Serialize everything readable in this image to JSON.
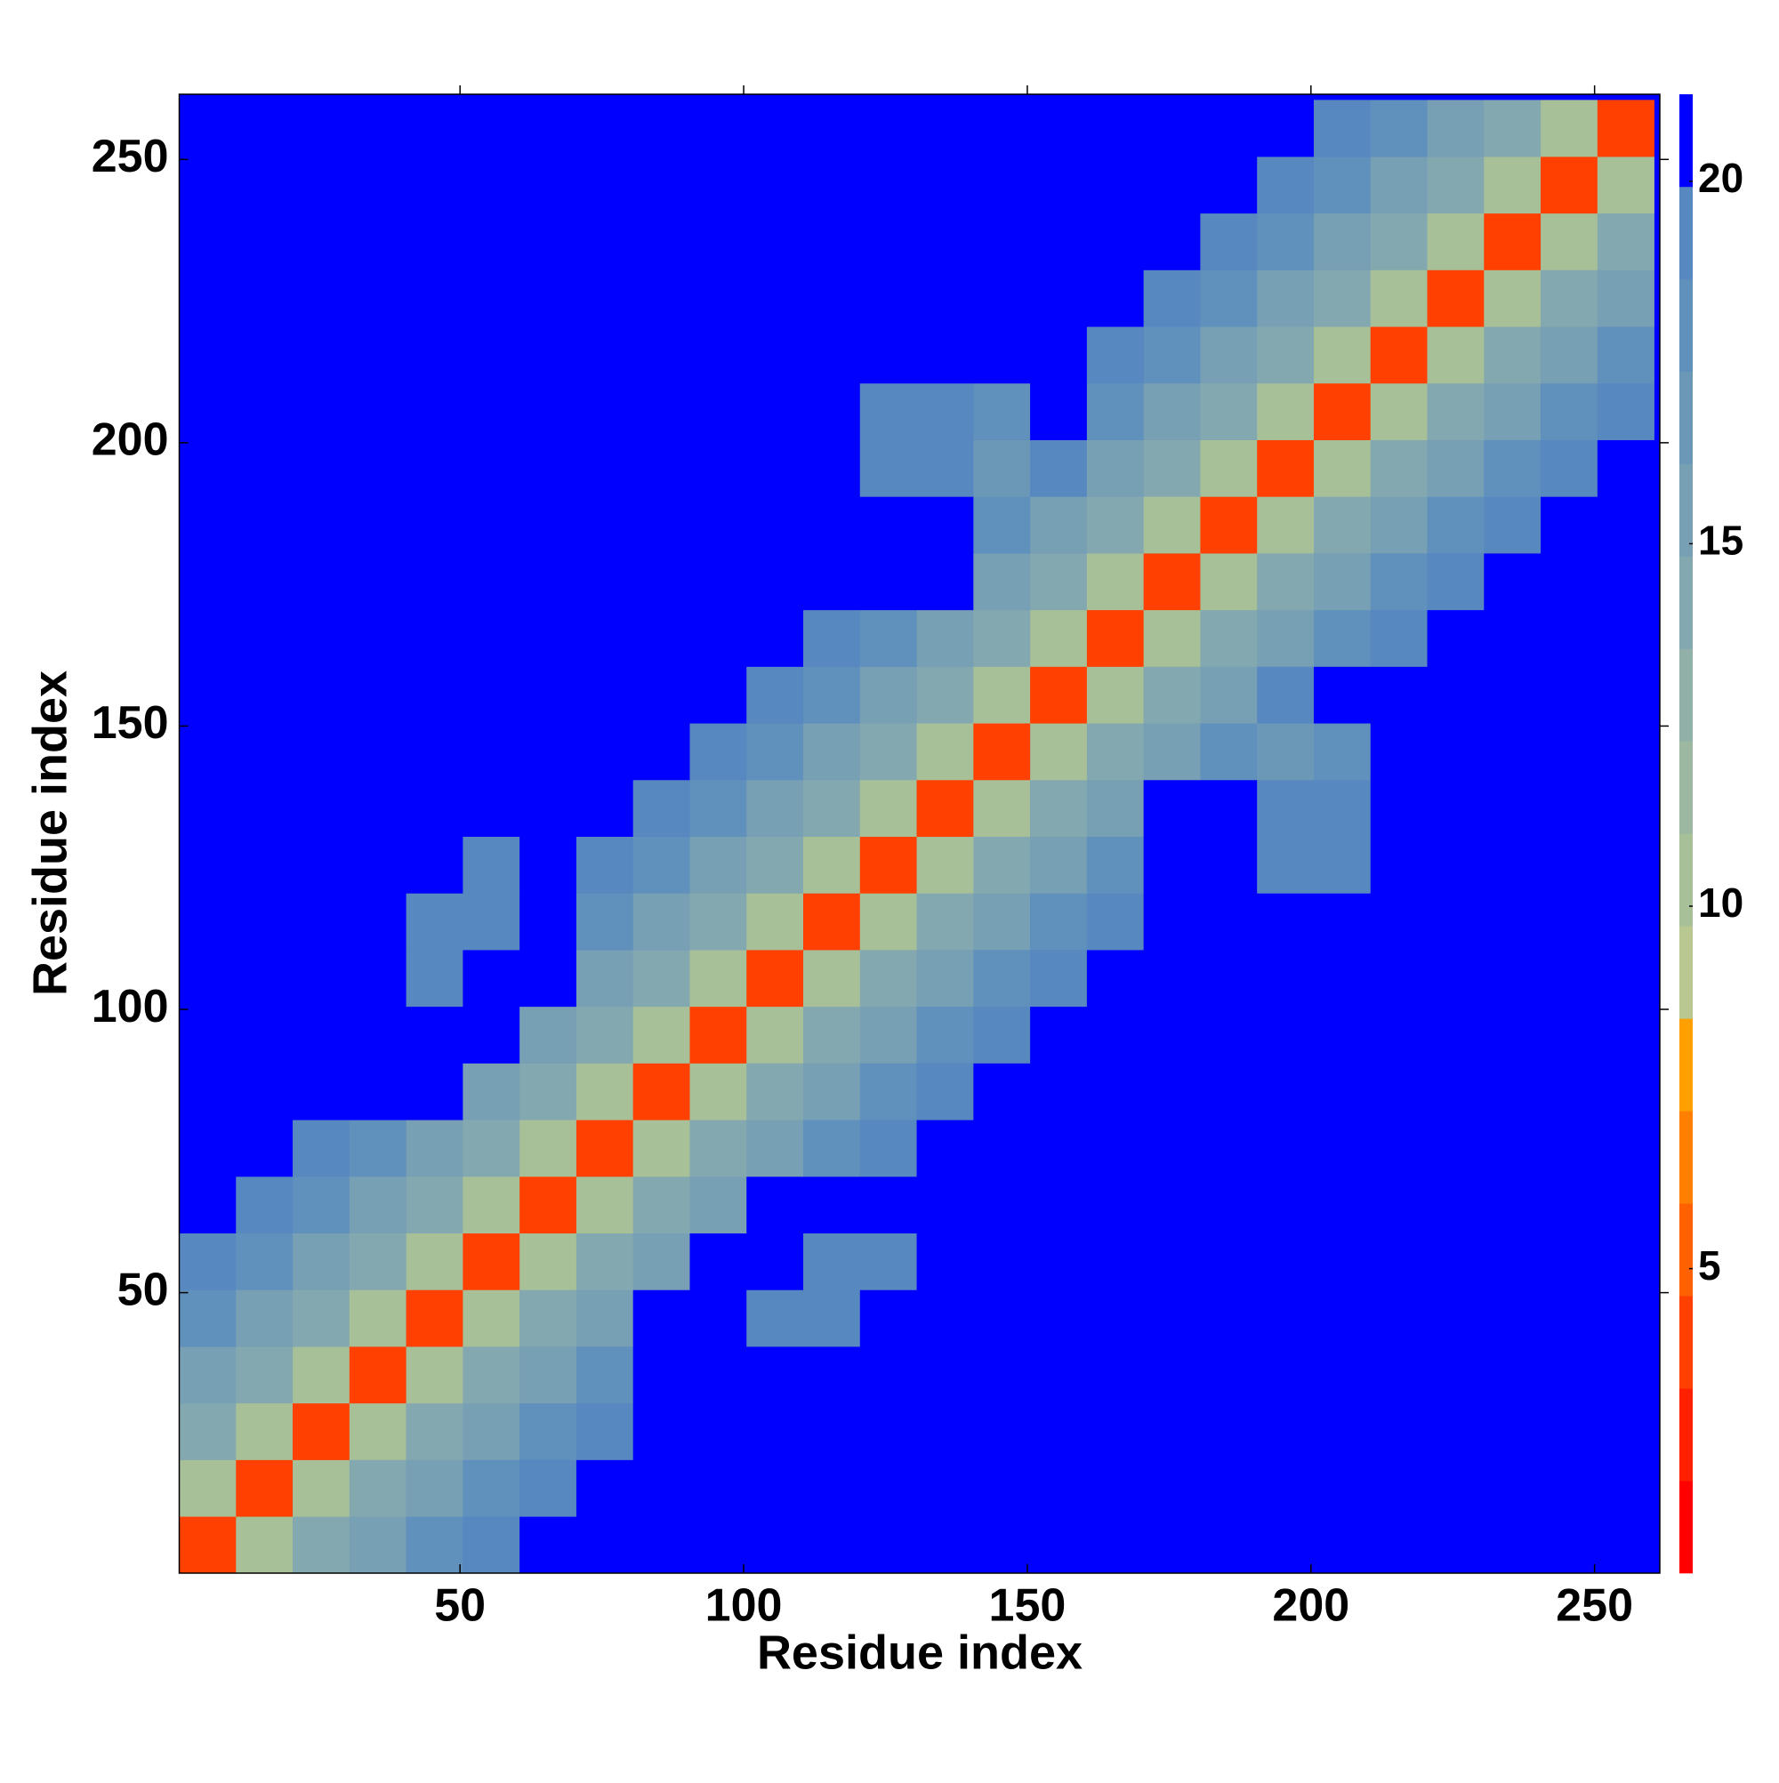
{
  "chart_data": {
    "type": "heatmap",
    "x_label": "Residue index",
    "y_label": "Residue index",
    "x": [
      5.5,
      15.5,
      25.5,
      35.5,
      45.5,
      55.5,
      65.5,
      75.5,
      85.5,
      95.5,
      105.5,
      115.5,
      125.5,
      135.5,
      145.5,
      155.5,
      165.5,
      175.5,
      185.5,
      195.5,
      205.5,
      215.5,
      225.5,
      235.5,
      245.5,
      255.5
    ],
    "y": [
      5.5,
      15.5,
      25.5,
      35.5,
      45.5,
      55.5,
      65.5,
      75.5,
      85.5,
      95.5,
      105.5,
      115.5,
      125.5,
      135.5,
      145.5,
      155.5,
      165.5,
      175.5,
      185.5,
      195.5,
      205.5,
      215.5,
      225.5,
      235.5,
      245.5,
      255.5
    ],
    "z": [
      [
        4,
        10,
        14,
        16,
        18,
        19,
        20,
        21,
        21,
        21,
        21,
        21,
        21,
        21,
        21,
        21,
        21,
        21,
        21,
        21,
        21,
        21,
        21,
        21,
        21,
        21
      ],
      [
        10,
        4,
        10,
        14,
        16,
        18,
        19,
        20,
        21,
        21,
        21,
        21,
        21,
        21,
        21,
        21,
        21,
        21,
        21,
        21,
        21,
        21,
        21,
        21,
        21,
        21
      ],
      [
        14,
        10,
        4,
        10,
        14,
        16,
        18,
        19,
        21,
        20,
        21,
        21,
        21,
        21,
        21,
        21,
        21,
        21,
        21,
        21,
        21,
        21,
        21,
        21,
        21,
        21
      ],
      [
        16,
        14,
        10,
        4,
        10,
        14,
        16,
        18,
        21,
        20,
        21,
        21,
        21,
        21,
        21,
        21,
        21,
        21,
        21,
        21,
        21,
        21,
        21,
        21,
        21,
        21
      ],
      [
        18,
        16,
        14,
        10,
        4,
        10,
        14,
        16,
        21,
        21,
        19,
        19,
        21,
        21,
        21,
        21,
        21,
        21,
        21,
        21,
        21,
        21,
        21,
        21,
        21,
        21
      ],
      [
        19,
        18,
        16,
        14,
        10,
        4,
        10,
        14,
        16,
        21,
        21,
        19,
        19,
        21,
        21,
        21,
        21,
        21,
        21,
        21,
        21,
        21,
        21,
        21,
        21,
        21
      ],
      [
        20,
        19,
        18,
        16,
        14,
        10,
        4,
        10,
        14,
        16,
        21,
        21,
        21,
        21,
        21,
        21,
        21,
        21,
        21,
        21,
        21,
        21,
        21,
        21,
        21,
        21
      ],
      [
        21,
        20,
        19,
        18,
        16,
        14,
        10,
        4,
        10,
        14,
        16,
        18,
        19,
        20,
        21,
        21,
        21,
        21,
        21,
        21,
        21,
        21,
        21,
        21,
        21,
        21
      ],
      [
        21,
        21,
        21,
        21,
        21,
        16,
        14,
        10,
        4,
        10,
        14,
        16,
        18,
        19,
        20,
        21,
        21,
        21,
        21,
        21,
        21,
        21,
        21,
        21,
        21,
        21
      ],
      [
        21,
        21,
        20,
        20,
        21,
        21,
        16,
        14,
        10,
        4,
        10,
        14,
        16,
        18,
        19,
        20,
        21,
        21,
        21,
        21,
        21,
        21,
        21,
        21,
        21,
        21
      ],
      [
        21,
        21,
        21,
        21,
        19,
        21,
        21,
        16,
        14,
        10,
        4,
        10,
        14,
        16,
        18,
        19,
        20,
        21,
        21,
        21,
        21,
        21,
        21,
        21,
        21,
        21
      ],
      [
        21,
        21,
        21,
        21,
        19,
        19,
        21,
        18,
        16,
        14,
        10,
        4,
        10,
        14,
        16,
        18,
        19,
        21,
        21,
        21,
        21,
        21,
        21,
        21,
        21,
        21
      ],
      [
        21,
        21,
        21,
        21,
        21,
        19,
        21,
        19,
        18,
        16,
        14,
        10,
        4,
        10,
        14,
        16,
        18,
        21,
        21,
        19,
        19,
        21,
        21,
        21,
        21,
        21
      ],
      [
        21,
        21,
        21,
        21,
        21,
        21,
        21,
        20,
        19,
        18,
        16,
        14,
        10,
        4,
        10,
        14,
        16,
        21,
        21,
        19,
        19,
        21,
        21,
        21,
        21,
        21
      ],
      [
        21,
        21,
        21,
        21,
        21,
        21,
        21,
        21,
        20,
        19,
        18,
        16,
        14,
        10,
        4,
        10,
        14,
        16,
        18,
        17,
        18,
        21,
        21,
        21,
        21,
        21
      ],
      [
        21,
        21,
        21,
        21,
        21,
        21,
        21,
        21,
        21,
        20,
        19,
        18,
        16,
        14,
        10,
        4,
        10,
        14,
        16,
        19,
        21,
        21,
        21,
        21,
        21,
        21
      ],
      [
        21,
        21,
        21,
        21,
        21,
        21,
        21,
        21,
        21,
        21,
        20,
        19,
        18,
        16,
        14,
        10,
        4,
        10,
        14,
        16,
        18,
        19,
        20,
        21,
        21,
        21
      ],
      [
        21,
        21,
        21,
        21,
        21,
        21,
        21,
        21,
        21,
        21,
        21,
        21,
        21,
        21,
        16,
        14,
        10,
        4,
        10,
        14,
        16,
        18,
        19,
        20,
        21,
        21
      ],
      [
        21,
        21,
        21,
        21,
        21,
        21,
        21,
        21,
        21,
        21,
        21,
        21,
        21,
        21,
        18,
        16,
        14,
        10,
        4,
        10,
        14,
        16,
        18,
        19,
        20,
        21
      ],
      [
        21,
        21,
        21,
        21,
        21,
        21,
        21,
        21,
        21,
        21,
        21,
        21,
        19,
        19,
        17,
        19,
        16,
        14,
        10,
        4,
        10,
        14,
        16,
        18,
        19,
        20
      ],
      [
        21,
        21,
        21,
        21,
        21,
        21,
        21,
        21,
        21,
        21,
        21,
        21,
        19,
        19,
        18,
        21,
        18,
        16,
        14,
        10,
        4,
        10,
        14,
        16,
        18,
        19
      ],
      [
        21,
        21,
        21,
        21,
        21,
        21,
        21,
        21,
        21,
        21,
        21,
        21,
        21,
        21,
        21,
        21,
        19,
        18,
        16,
        14,
        10,
        4,
        10,
        14,
        16,
        18
      ],
      [
        21,
        21,
        21,
        21,
        21,
        21,
        21,
        21,
        21,
        21,
        21,
        21,
        21,
        21,
        21,
        21,
        20,
        19,
        18,
        16,
        14,
        10,
        4,
        10,
        14,
        16
      ],
      [
        21,
        21,
        21,
        21,
        21,
        21,
        21,
        21,
        21,
        21,
        21,
        21,
        21,
        21,
        21,
        21,
        21,
        20,
        19,
        18,
        16,
        14,
        10,
        4,
        10,
        14
      ],
      [
        21,
        21,
        21,
        21,
        21,
        21,
        21,
        21,
        21,
        21,
        21,
        21,
        21,
        21,
        21,
        21,
        21,
        21,
        20,
        19,
        18,
        16,
        14,
        10,
        4,
        10
      ],
      [
        21,
        21,
        21,
        21,
        21,
        21,
        21,
        21,
        21,
        21,
        21,
        21,
        21,
        21,
        21,
        21,
        21,
        21,
        21,
        20,
        19,
        18,
        16,
        14,
        10,
        4
      ]
    ],
    "xlim": [
      0.5,
      261.5
    ],
    "ylim": [
      0.5,
      261.5
    ],
    "xticks": [
      50,
      100,
      150,
      200,
      250
    ],
    "yticks": [
      50,
      100,
      150,
      200,
      250
    ],
    "colorbar": {
      "lim": [
        0.8,
        21.2
      ],
      "ticks": [
        5,
        10,
        15,
        20
      ],
      "bounds": [
        0.8,
        2.075,
        3.35,
        4.625,
        5.9,
        7.175,
        8.45,
        9.725,
        11,
        12.275,
        13.55,
        14.825,
        16.1,
        17.375,
        18.65,
        19.925,
        21.2
      ],
      "colors": [
        "#ff0000",
        "#ff2000",
        "#ff4000",
        "#ff6000",
        "#ff8000",
        "#ffa000",
        "#b8c890",
        "#a8c098",
        "#9cb8a0",
        "#90b0a8",
        "#84a8b0",
        "#78a0b4",
        "#6c98b8",
        "#6090bc",
        "#5888c0",
        "#0000ff"
      ]
    }
  }
}
